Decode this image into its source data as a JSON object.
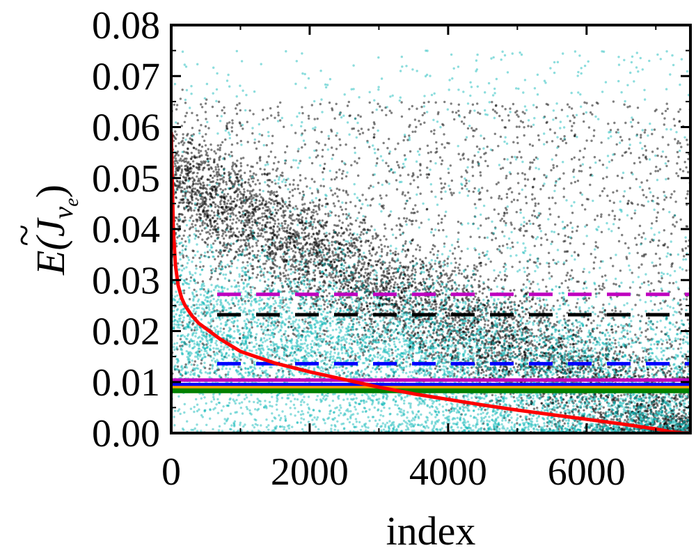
{
  "colors": {
    "cyan_points": "#00b4b4",
    "black_points": "#000000",
    "red_curve": "#ff0000",
    "magenta": "#bf00bf",
    "blue": "#0000ff",
    "green": "#008000",
    "orange": "#ffa500"
  },
  "chart_data": {
    "type": "scatter",
    "title": "",
    "xlabel": "index",
    "ylabel": "E(J̃νe)",
    "ylabel_parts": {
      "main": "E(",
      "j": "J",
      "tilde": "~",
      "sub": "ν",
      "subsub": "e",
      "close": ")"
    },
    "xlim": [
      0,
      7500
    ],
    "ylim": [
      0.0,
      0.08
    ],
    "x_ticks": [
      0,
      2000,
      4000,
      6000
    ],
    "x_tick_labels": [
      "0",
      "2000",
      "4000",
      "6000"
    ],
    "y_ticks": [
      0.0,
      0.01,
      0.02,
      0.03,
      0.04,
      0.05,
      0.06,
      0.07,
      0.08
    ],
    "y_tick_labels": [
      "0.00",
      "0.01",
      "0.02",
      "0.03",
      "0.04",
      "0.05",
      "0.06",
      "0.07",
      "0.08"
    ],
    "grid": false,
    "scatter_series": [
      {
        "color": "cyan",
        "count": 7500,
        "trend_start": 0.02,
        "trend_end": 0.006,
        "spread": 0.009
      },
      {
        "color": "black",
        "count": 7500,
        "trend_start": 0.048,
        "trend_end": 0.0,
        "spread": 0.006
      }
    ],
    "curve": {
      "color": "red",
      "x": [
        0,
        30,
        60,
        100,
        150,
        200,
        300,
        400,
        500,
        700,
        1000,
        1500,
        2000,
        2500,
        3000,
        3500,
        4000,
        4500,
        5000,
        5500,
        6000,
        6500,
        7000,
        7200,
        7400,
        7500
      ],
      "y": [
        0.059,
        0.04,
        0.033,
        0.029,
        0.0265,
        0.025,
        0.023,
        0.0215,
        0.0205,
        0.0185,
        0.016,
        0.0137,
        0.012,
        0.0105,
        0.009,
        0.0077,
        0.0066,
        0.0055,
        0.0045,
        0.0036,
        0.0027,
        0.0018,
        0.0008,
        0.0003,
        0.0,
        0.0
      ]
    },
    "hlines_dashed": [
      {
        "color": "magenta",
        "y": 0.0272
      },
      {
        "color": "black",
        "y": 0.0232
      },
      {
        "color": "blue",
        "y": 0.0136
      }
    ],
    "hlines_solid": [
      {
        "color": "magenta",
        "y": 0.0104
      },
      {
        "color": "blue",
        "y": 0.0095
      },
      {
        "color": "orange",
        "y": 0.0089
      },
      {
        "color": "green",
        "y": 0.0083
      }
    ]
  }
}
